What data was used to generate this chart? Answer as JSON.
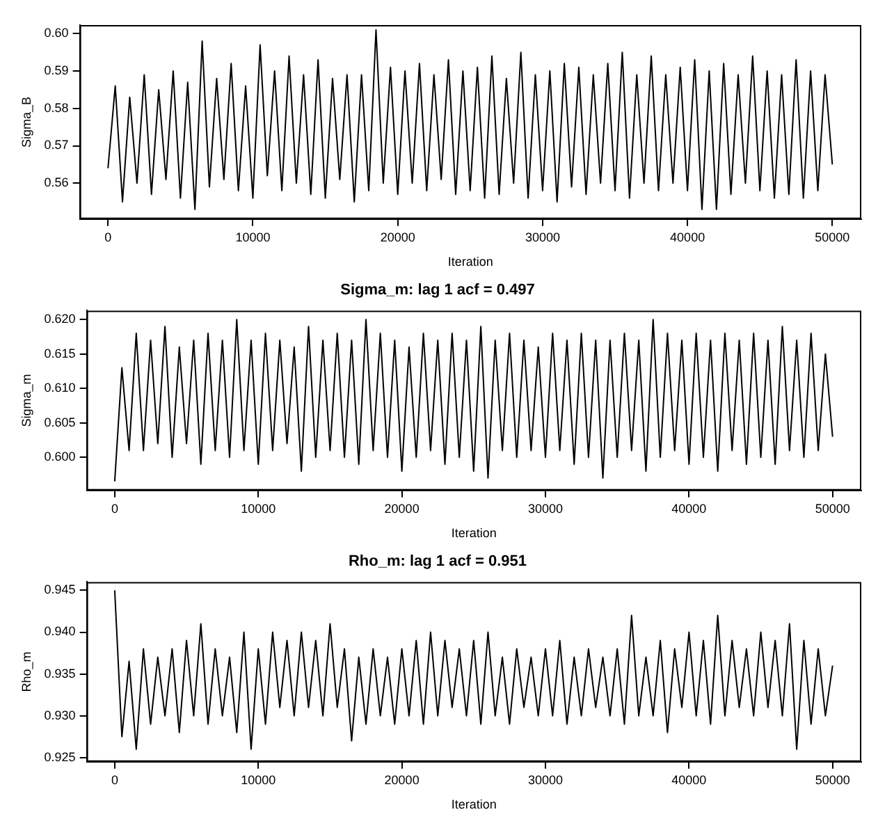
{
  "chart_data": [
    {
      "type": "line",
      "ylabel": "Sigma_B",
      "xlabel": "Iteration",
      "grid": false,
      "legend": false,
      "marker": "none",
      "line_style": "solid",
      "xlim": [
        -1950,
        52000
      ],
      "xticks": [
        0,
        10000,
        20000,
        30000,
        40000,
        50000
      ],
      "ylim": [
        0.5504,
        0.6023
      ],
      "yticks": [
        0.56,
        0.57,
        0.58,
        0.59,
        {
          "value": 0.6,
          "label": "0.60"
        }
      ],
      "x": [
        0,
        500,
        1000,
        1500,
        2000,
        2500,
        3000,
        3500,
        4000,
        4500,
        5000,
        5500,
        6000,
        6500,
        7000,
        7500,
        8000,
        8500,
        9000,
        9500,
        10000,
        10500,
        11000,
        11500,
        12000,
        12500,
        13000,
        13500,
        14000,
        14500,
        15000,
        15500,
        16000,
        16500,
        17000,
        17500,
        18000,
        18500,
        19000,
        19500,
        20000,
        20500,
        21000,
        21500,
        22000,
        22500,
        23000,
        23500,
        24000,
        24500,
        25000,
        25500,
        26000,
        26500,
        27000,
        27500,
        28000,
        28500,
        29000,
        29500,
        30000,
        30500,
        31000,
        31500,
        32000,
        32500,
        33000,
        33500,
        34000,
        34500,
        35000,
        35500,
        36000,
        36500,
        37000,
        37500,
        38000,
        38500,
        39000,
        39500,
        40000,
        40500,
        41000,
        41500,
        42000,
        42500,
        43000,
        43500,
        44000,
        44500,
        45000,
        45500,
        46000,
        46500,
        47000,
        47500,
        48000,
        48500,
        49000,
        49500,
        50000
      ],
      "series": [
        {
          "color": "#000000",
          "values": [
            0.564,
            0.586,
            0.555,
            0.583,
            0.56,
            0.589,
            0.557,
            0.585,
            0.561,
            0.59,
            0.556,
            0.587,
            0.553,
            0.598,
            0.559,
            0.588,
            0.561,
            0.592,
            0.558,
            0.586,
            0.556,
            0.597,
            0.562,
            0.59,
            0.558,
            0.594,
            0.56,
            0.589,
            0.557,
            0.593,
            0.556,
            0.588,
            0.561,
            0.589,
            0.555,
            0.589,
            0.558,
            0.601,
            0.56,
            0.591,
            0.557,
            0.59,
            0.56,
            0.592,
            0.558,
            0.589,
            0.561,
            0.593,
            0.557,
            0.59,
            0.558,
            0.591,
            0.556,
            0.594,
            0.557,
            0.588,
            0.56,
            0.595,
            0.556,
            0.589,
            0.558,
            0.59,
            0.555,
            0.592,
            0.559,
            0.591,
            0.557,
            0.589,
            0.56,
            0.592,
            0.558,
            0.595,
            0.556,
            0.589,
            0.56,
            0.594,
            0.558,
            0.589,
            0.56,
            0.591,
            0.558,
            0.593,
            0.553,
            0.59,
            0.553,
            0.592,
            0.557,
            0.589,
            0.56,
            0.594,
            0.558,
            0.59,
            0.556,
            0.589,
            0.557,
            0.593,
            0.556,
            0.59,
            0.558,
            0.589,
            0.565
          ]
        }
      ]
    },
    {
      "type": "line",
      "title": "Sigma_m: lag 1 acf = 0.497",
      "ylabel": "Sigma_m",
      "xlabel": "Iteration",
      "grid": false,
      "legend": false,
      "marker": "none",
      "line_style": "solid",
      "xlim": [
        -1950,
        52000
      ],
      "xticks": [
        0,
        10000,
        20000,
        30000,
        40000,
        50000
      ],
      "ylim": [
        0.5952,
        0.6213
      ],
      "yticks": [
        {
          "value": 0.6,
          "label": "0.600"
        },
        0.605,
        {
          "value": 0.61,
          "label": "0.610"
        },
        0.615,
        {
          "value": 0.62,
          "label": "0.620"
        }
      ],
      "x": [
        0,
        500,
        1000,
        1500,
        2000,
        2500,
        3000,
        3500,
        4000,
        4500,
        5000,
        5500,
        6000,
        6500,
        7000,
        7500,
        8000,
        8500,
        9000,
        9500,
        10000,
        10500,
        11000,
        11500,
        12000,
        12500,
        13000,
        13500,
        14000,
        14500,
        15000,
        15500,
        16000,
        16500,
        17000,
        17500,
        18000,
        18500,
        19000,
        19500,
        20000,
        20500,
        21000,
        21500,
        22000,
        22500,
        23000,
        23500,
        24000,
        24500,
        25000,
        25500,
        26000,
        26500,
        27000,
        27500,
        28000,
        28500,
        29000,
        29500,
        30000,
        30500,
        31000,
        31500,
        32000,
        32500,
        33000,
        33500,
        34000,
        34500,
        35000,
        35500,
        36000,
        36500,
        37000,
        37500,
        38000,
        38500,
        39000,
        39500,
        40000,
        40500,
        41000,
        41500,
        42000,
        42500,
        43000,
        43500,
        44000,
        44500,
        45000,
        45500,
        46000,
        46500,
        47000,
        47500,
        48000,
        48500,
        49000,
        49500,
        50000
      ],
      "series": [
        {
          "color": "#000000",
          "values": [
            0.5965,
            0.613,
            0.601,
            0.618,
            0.601,
            0.617,
            0.602,
            0.619,
            0.6,
            0.616,
            0.602,
            0.617,
            0.599,
            0.618,
            0.601,
            0.617,
            0.6,
            0.62,
            0.601,
            0.617,
            0.599,
            0.618,
            0.601,
            0.617,
            0.602,
            0.616,
            0.598,
            0.619,
            0.6,
            0.617,
            0.601,
            0.618,
            0.6,
            0.617,
            0.599,
            0.62,
            0.601,
            0.618,
            0.6,
            0.617,
            0.598,
            0.616,
            0.6,
            0.618,
            0.601,
            0.617,
            0.599,
            0.618,
            0.6,
            0.617,
            0.598,
            0.619,
            0.597,
            0.617,
            0.601,
            0.618,
            0.6,
            0.617,
            0.601,
            0.616,
            0.6,
            0.618,
            0.601,
            0.617,
            0.599,
            0.618,
            0.6,
            0.617,
            0.597,
            0.617,
            0.6,
            0.618,
            0.601,
            0.617,
            0.598,
            0.62,
            0.6,
            0.618,
            0.601,
            0.617,
            0.599,
            0.618,
            0.6,
            0.617,
            0.598,
            0.618,
            0.601,
            0.617,
            0.599,
            0.618,
            0.6,
            0.617,
            0.599,
            0.619,
            0.601,
            0.617,
            0.6,
            0.618,
            0.601,
            0.615,
            0.603
          ]
        }
      ]
    },
    {
      "type": "line",
      "title": "Rho_m: lag 1 acf = 0.951",
      "ylabel": "Rho_m",
      "xlabel": "Iteration",
      "grid": false,
      "legend": false,
      "marker": "none",
      "line_style": "solid",
      "xlim": [
        -1950,
        52000
      ],
      "xticks": [
        0,
        10000,
        20000,
        30000,
        40000,
        50000
      ],
      "ylim": [
        0.9245,
        0.946
      ],
      "yticks": [
        0.925,
        {
          "value": 0.93,
          "label": "0.930"
        },
        0.935,
        {
          "value": 0.94,
          "label": "0.940"
        },
        0.945
      ],
      "x": [
        0,
        500,
        1000,
        1500,
        2000,
        2500,
        3000,
        3500,
        4000,
        4500,
        5000,
        5500,
        6000,
        6500,
        7000,
        7500,
        8000,
        8500,
        9000,
        9500,
        10000,
        10500,
        11000,
        11500,
        12000,
        12500,
        13000,
        13500,
        14000,
        14500,
        15000,
        15500,
        16000,
        16500,
        17000,
        17500,
        18000,
        18500,
        19000,
        19500,
        20000,
        20500,
        21000,
        21500,
        22000,
        22500,
        23000,
        23500,
        24000,
        24500,
        25000,
        25500,
        26000,
        26500,
        27000,
        27500,
        28000,
        28500,
        29000,
        29500,
        30000,
        30500,
        31000,
        31500,
        32000,
        32500,
        33000,
        33500,
        34000,
        34500,
        35000,
        35500,
        36000,
        36500,
        37000,
        37500,
        38000,
        38500,
        39000,
        39500,
        40000,
        40500,
        41000,
        41500,
        42000,
        42500,
        43000,
        43500,
        44000,
        44500,
        45000,
        45500,
        46000,
        46500,
        47000,
        47500,
        48000,
        48500,
        49000,
        49500,
        50000
      ],
      "series": [
        {
          "color": "#000000",
          "values": [
            0.945,
            0.9275,
            0.9365,
            0.926,
            0.938,
            0.929,
            0.937,
            0.93,
            0.938,
            0.928,
            0.939,
            0.93,
            0.941,
            0.929,
            0.938,
            0.93,
            0.937,
            0.928,
            0.94,
            0.926,
            0.938,
            0.929,
            0.94,
            0.931,
            0.939,
            0.93,
            0.94,
            0.931,
            0.939,
            0.93,
            0.941,
            0.931,
            0.938,
            0.927,
            0.937,
            0.929,
            0.938,
            0.93,
            0.937,
            0.929,
            0.938,
            0.93,
            0.939,
            0.929,
            0.94,
            0.93,
            0.939,
            0.931,
            0.938,
            0.93,
            0.939,
            0.929,
            0.94,
            0.93,
            0.937,
            0.929,
            0.938,
            0.931,
            0.937,
            0.93,
            0.938,
            0.93,
            0.939,
            0.929,
            0.937,
            0.93,
            0.938,
            0.931,
            0.937,
            0.93,
            0.938,
            0.929,
            0.942,
            0.93,
            0.937,
            0.93,
            0.939,
            0.928,
            0.938,
            0.931,
            0.94,
            0.93,
            0.939,
            0.929,
            0.942,
            0.93,
            0.939,
            0.931,
            0.938,
            0.93,
            0.94,
            0.931,
            0.939,
            0.93,
            0.941,
            0.926,
            0.939,
            0.929,
            0.938,
            0.93,
            0.936
          ]
        }
      ]
    }
  ]
}
